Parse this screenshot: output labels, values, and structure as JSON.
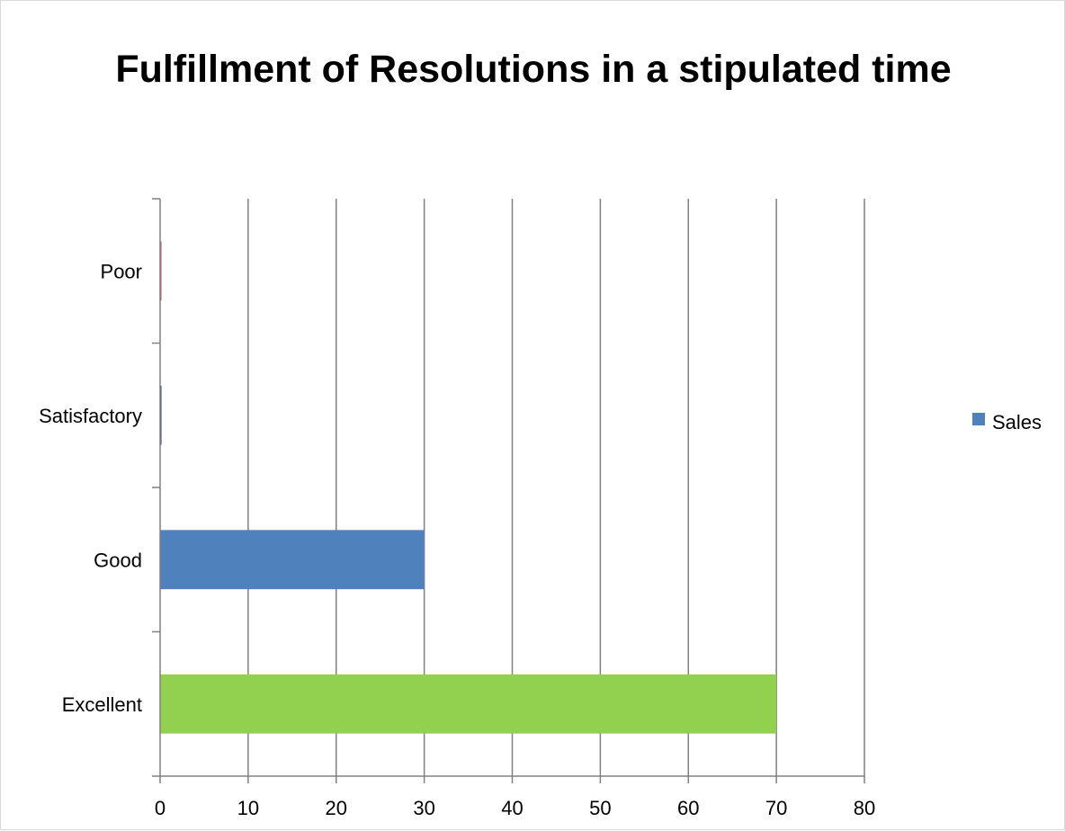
{
  "chart_data": {
    "type": "bar",
    "orientation": "horizontal",
    "title": "Fulfillment of Resolutions in a stipulated time",
    "categories": [
      "Excellent",
      "Good",
      "Satisfactory",
      "Poor"
    ],
    "series": [
      {
        "name": "Sales",
        "values": [
          70,
          30,
          0,
          0
        ],
        "colors": [
          "#92d050",
          "#4f81bd",
          "#1f497d",
          "#c0504d"
        ]
      }
    ],
    "xlim": [
      0,
      80
    ],
    "xticks": [
      "0",
      "10",
      "20",
      "30",
      "40",
      "50",
      "60",
      "70",
      "80"
    ],
    "grid": "vertical",
    "legend_position": "right",
    "legend_color": "#4f81bd",
    "gridline_color": "#808080"
  }
}
